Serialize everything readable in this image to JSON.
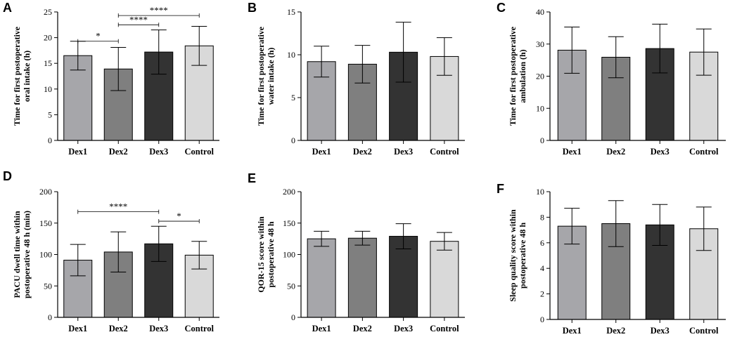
{
  "chart_data": [
    {
      "panel": "A",
      "type": "bar",
      "ylabel_lines": [
        "Time for first postoperative",
        "oral intake (h)"
      ],
      "categories": [
        "Dex1",
        "Dex2",
        "Dex3",
        "Control"
      ],
      "values": [
        16.5,
        13.9,
        17.2,
        18.4
      ],
      "errors": [
        2.8,
        4.2,
        4.3,
        3.8
      ],
      "ylim": [
        0,
        25
      ],
      "yticks": [
        "0",
        "5",
        "10",
        "15",
        "20",
        "25"
      ],
      "significance": [
        {
          "from": 0,
          "to": 1,
          "label": "*",
          "level": 19.3
        },
        {
          "from": 1,
          "to": 2,
          "label": "****",
          "level": 22.5
        },
        {
          "from": 1,
          "to": 3,
          "label": "****",
          "level": 24.3
        }
      ],
      "colors": [
        "#a6a6aa",
        "#7f7f7f",
        "#333333",
        "#d9d9d9"
      ]
    },
    {
      "panel": "B",
      "type": "bar",
      "ylabel_lines": [
        "Time for first postoperative",
        "water intake (h)"
      ],
      "categories": [
        "Dex1",
        "Dex2",
        "Dex3",
        "Control"
      ],
      "values": [
        9.2,
        8.9,
        10.3,
        9.8
      ],
      "errors": [
        1.8,
        2.2,
        3.5,
        2.2
      ],
      "ylim": [
        0,
        15
      ],
      "yticks": [
        "0",
        "5",
        "10",
        "15"
      ],
      "significance": [],
      "colors": [
        "#a6a6aa",
        "#7f7f7f",
        "#333333",
        "#d9d9d9"
      ]
    },
    {
      "panel": "C",
      "type": "bar",
      "ylabel_lines": [
        "Time for first postoperative",
        "ambulation (h)"
      ],
      "categories": [
        "Dex1",
        "Dex2",
        "Dex3",
        "Control"
      ],
      "values": [
        28.1,
        25.9,
        28.6,
        27.5
      ],
      "errors": [
        7.2,
        6.4,
        7.6,
        7.2
      ],
      "ylim": [
        0,
        40
      ],
      "yticks": [
        "0",
        "10",
        "20",
        "30",
        "40"
      ],
      "significance": [],
      "colors": [
        "#a6a6aa",
        "#7f7f7f",
        "#333333",
        "#d9d9d9"
      ]
    },
    {
      "panel": "D",
      "type": "bar",
      "ylabel_lines": [
        "PACU dwell time within",
        "postoperative 48 h (min)"
      ],
      "categories": [
        "Dex1",
        "Dex2",
        "Dex3",
        "Control"
      ],
      "values": [
        91,
        104,
        117,
        99
      ],
      "errors": [
        25,
        32,
        28,
        22
      ],
      "ylim": [
        0,
        200
      ],
      "yticks": [
        "0",
        "50",
        "100",
        "150",
        "200"
      ],
      "significance": [
        {
          "from": 0,
          "to": 2,
          "label": "****",
          "level": 168
        },
        {
          "from": 2,
          "to": 3,
          "label": "*",
          "level": 153
        }
      ],
      "colors": [
        "#a6a6aa",
        "#7f7f7f",
        "#333333",
        "#d9d9d9"
      ]
    },
    {
      "panel": "E",
      "type": "bar",
      "ylabel_lines": [
        "QOR-15  score within",
        "postoperative 48 h"
      ],
      "categories": [
        "Dex1",
        "Dex2",
        "Dex3",
        "Control"
      ],
      "values": [
        125,
        126,
        129,
        121
      ],
      "errors": [
        12,
        11,
        20,
        14
      ],
      "ylim": [
        0,
        200
      ],
      "yticks": [
        "0",
        "50",
        "100",
        "150",
        "200"
      ],
      "significance": [],
      "colors": [
        "#a6a6aa",
        "#7f7f7f",
        "#333333",
        "#d9d9d9"
      ]
    },
    {
      "panel": "F",
      "type": "bar",
      "ylabel_lines": [
        "Sleep quality score within",
        "postoperative 48 h"
      ],
      "categories": [
        "Dex1",
        "Dex2",
        "Dex3",
        "Control"
      ],
      "values": [
        7.3,
        7.5,
        7.4,
        7.1
      ],
      "errors": [
        1.4,
        1.8,
        1.6,
        1.7
      ],
      "ylim": [
        0,
        10
      ],
      "yticks": [
        "0",
        "2",
        "4",
        "6",
        "8",
        "10"
      ],
      "significance": [],
      "colors": [
        "#a6a6aa",
        "#7f7f7f",
        "#333333",
        "#d9d9d9"
      ]
    }
  ]
}
